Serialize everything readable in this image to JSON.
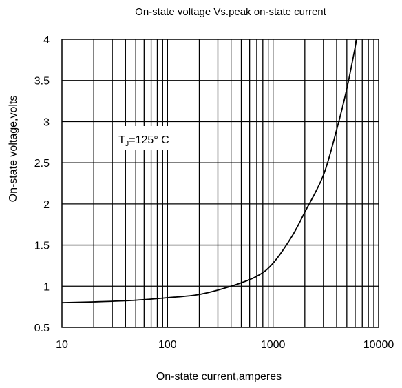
{
  "chart_data": {
    "type": "line",
    "title": "On-state voltage Vs.peak on-state current",
    "xlabel": "On-state current,amperes",
    "ylabel": "On-state voltage,volts",
    "x_scale": "log",
    "xlim": [
      10,
      10000
    ],
    "ylim": [
      0.5,
      4
    ],
    "x_ticks": [
      10,
      100,
      1000,
      10000
    ],
    "x_tick_labels": [
      "10",
      "100",
      "1000",
      "10000"
    ],
    "y_ticks": [
      0.5,
      1,
      1.5,
      2,
      2.5,
      3,
      3.5,
      4
    ],
    "y_tick_labels": [
      "0.5",
      "1",
      "1.5",
      "2",
      "2.5",
      "3",
      "3.5",
      "4"
    ],
    "grid": true,
    "annotation": {
      "main": "T",
      "sub": "J",
      "rest": "=125° C"
    },
    "series": [
      {
        "color": "#000000",
        "points": [
          [
            10,
            0.8
          ],
          [
            20,
            0.81
          ],
          [
            50,
            0.83
          ],
          [
            100,
            0.86
          ],
          [
            200,
            0.9
          ],
          [
            400,
            1.0
          ],
          [
            700,
            1.12
          ],
          [
            1000,
            1.28
          ],
          [
            1500,
            1.6
          ],
          [
            2000,
            1.9
          ],
          [
            3000,
            2.35
          ],
          [
            4000,
            2.9
          ],
          [
            5000,
            3.4
          ],
          [
            6200,
            4.0
          ]
        ]
      }
    ]
  }
}
